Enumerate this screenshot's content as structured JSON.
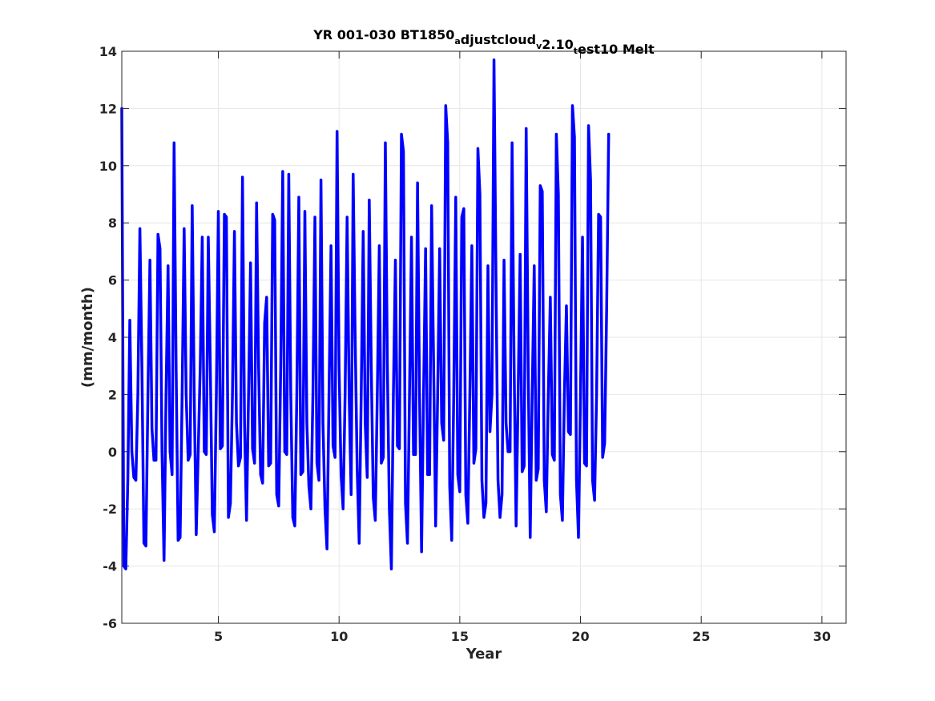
{
  "chart_data": {
    "type": "line",
    "title": {
      "parts": [
        {
          "text": "YR 001-030 BT1850",
          "sub": false
        },
        {
          "text": "a",
          "sub": true
        },
        {
          "text": "djustcloud",
          "sub": false
        },
        {
          "text": "v",
          "sub": true
        },
        {
          "text": "2.10",
          "sub": false
        },
        {
          "text": "t",
          "sub": true
        },
        {
          "text": "est10 Melt",
          "sub": false
        }
      ]
    },
    "xlabel": "Year",
    "ylabel": "(mm/month)",
    "xlim": [
      1,
      31
    ],
    "ylim": [
      -6,
      14
    ],
    "xticks": [
      5,
      10,
      15,
      20,
      25,
      30
    ],
    "yticks": [
      -6,
      -4,
      -2,
      0,
      2,
      4,
      6,
      8,
      10,
      12,
      14
    ],
    "grid": true,
    "series": [
      {
        "color": "#0000ff",
        "x_start": 1,
        "x_step": 0.0833333,
        "values": [
          12.0,
          -4.0,
          -4.1,
          -1.0,
          4.6,
          0.0,
          -0.9,
          -1.0,
          2.0,
          7.8,
          3.0,
          -3.2,
          -3.3,
          2.0,
          6.7,
          0.8,
          -0.3,
          -0.3,
          7.6,
          7.1,
          0.0,
          -3.8,
          2.0,
          6.5,
          0.0,
          -0.8,
          10.8,
          3.0,
          -3.1,
          -3.0,
          2.0,
          7.8,
          2.0,
          -0.3,
          -0.1,
          8.6,
          2.0,
          -2.9,
          0.0,
          3.0,
          7.5,
          0.0,
          -0.1,
          7.5,
          3.0,
          -2.2,
          -2.8,
          2.0,
          8.4,
          0.1,
          0.2,
          8.3,
          8.2,
          -2.3,
          -1.8,
          2.0,
          7.7,
          1.0,
          -0.5,
          -0.2,
          9.6,
          1.0,
          -2.4,
          2.0,
          6.6,
          0.1,
          -0.4,
          8.7,
          3.0,
          -0.8,
          -1.1,
          4.5,
          5.4,
          -0.5,
          -0.4,
          8.3,
          8.1,
          -1.5,
          -1.9,
          3.0,
          9.8,
          0.0,
          -0.1,
          9.7,
          2.0,
          -2.3,
          -2.6,
          2.0,
          8.9,
          -0.8,
          -0.7,
          8.4,
          1.0,
          -1.2,
          -2.0,
          2.0,
          8.2,
          -0.4,
          -1.0,
          9.5,
          1.0,
          -2.0,
          -3.4,
          2.0,
          7.2,
          0.2,
          -0.2,
          11.2,
          3.0,
          -0.8,
          -2.0,
          2.0,
          8.2,
          2.0,
          -1.5,
          9.7,
          4.0,
          -0.6,
          -3.2,
          2.0,
          7.7,
          1.0,
          -0.9,
          8.8,
          3.0,
          -1.6,
          -2.4,
          2.0,
          7.2,
          -0.4,
          -0.2,
          10.8,
          3.0,
          -2.0,
          -4.1,
          2.0,
          6.7,
          0.2,
          0.1,
          11.1,
          10.5,
          -1.8,
          -3.2,
          2.0,
          7.5,
          -0.1,
          -0.1,
          9.4,
          2.0,
          -3.5,
          2.0,
          7.1,
          -0.8,
          -0.8,
          8.6,
          3.0,
          -2.6,
          2.0,
          7.1,
          1.0,
          0.4,
          12.1,
          10.8,
          -1.2,
          -3.1,
          2.0,
          8.9,
          -0.8,
          -1.4,
          8.2,
          8.5,
          -1.5,
          -2.5,
          2.0,
          7.2,
          -0.4,
          0.1,
          10.6,
          9.0,
          -1.0,
          -2.3,
          -1.8,
          6.5,
          0.7,
          2.0,
          13.7,
          6.0,
          -1.0,
          -2.3,
          -1.5,
          6.7,
          1.0,
          0.0,
          0.0,
          10.8,
          3.0,
          -2.6,
          2.0,
          6.9,
          -0.7,
          -0.5,
          11.3,
          3.0,
          -3.0,
          2.0,
          6.5,
          -1.0,
          -0.6,
          9.3,
          9.1,
          -1.0,
          -2.1,
          2.0,
          5.4,
          -0.1,
          -0.3,
          11.1,
          9.0,
          -1.5,
          -2.4,
          2.0,
          5.1,
          0.7,
          0.6,
          12.1,
          11.0,
          -1.0,
          -3.0,
          2.0,
          7.5,
          -0.4,
          -0.5,
          11.4,
          9.5,
          -1.0,
          -1.7,
          2.0,
          8.3,
          8.2,
          -0.2,
          0.3,
          5.0,
          11.1
        ]
      }
    ]
  }
}
